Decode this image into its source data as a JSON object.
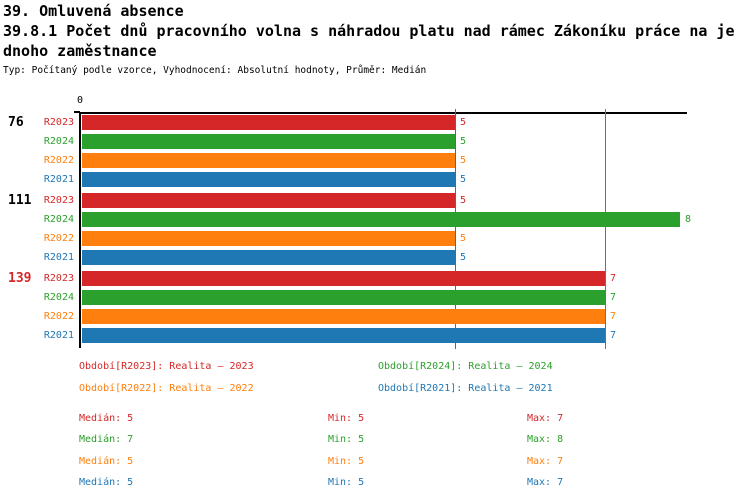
{
  "header": {
    "title_line1": "39. Omluvená absence",
    "title_line2": "39.8.1 Počet dnů pracovního volna s náhradou platu nad rámec Zákoníku práce na je",
    "title_line3": "dnoho zaměstnance",
    "meta": "Typ: Počítaný podle vzorce, Vyhodnocení: Absolutní hodnoty, Průměr: Medián"
  },
  "colors": {
    "R2023": "#d62728",
    "R2024": "#2ca02c",
    "R2022": "#ff7f0e",
    "R2021": "#1f77b4",
    "axis": "#000000",
    "text": "#000000"
  },
  "chart_data": {
    "type": "bar",
    "orientation": "horizontal",
    "title": "39.8.1 Počet dnů pracovního volna s náhradou platu nad rámec Zákoníku práce na jednoho zaměstnance",
    "x_axis": {
      "tick_labels": [
        "0"
      ],
      "min": 0,
      "implied_max": 8
    },
    "series_order": [
      "R2023",
      "R2024",
      "R2022",
      "R2021"
    ],
    "groups": [
      {
        "label": "76",
        "label_color": "#000000",
        "values": {
          "R2023": 5,
          "R2024": 5,
          "R2022": 5,
          "R2021": 5
        }
      },
      {
        "label": "111",
        "label_color": "#000000",
        "values": {
          "R2023": 5,
          "R2024": 8,
          "R2022": 5,
          "R2021": 5
        }
      },
      {
        "label": "139",
        "label_color": "#d62728",
        "values": {
          "R2023": 7,
          "R2024": 7,
          "R2022": 7,
          "R2021": 7
        }
      }
    ],
    "median_reference_lines": [
      {
        "series": "R2021",
        "value": 5,
        "color": "#1f77b4"
      },
      {
        "series": "R2024",
        "value": 7,
        "color": "#2ca02c"
      }
    ],
    "legend_position": "bottom",
    "grid": false
  },
  "legend": {
    "items": [
      {
        "series": "R2023",
        "label": "Období[R2023]: Realita – 2023",
        "color": "#d62728"
      },
      {
        "series": "R2024",
        "label": "Období[R2024]: Realita – 2024",
        "color": "#2ca02c"
      },
      {
        "series": "R2022",
        "label": "Období[R2022]: Realita – 2022",
        "color": "#ff7f0e"
      },
      {
        "series": "R2021",
        "label": "Období[R2021]: Realita – 2021",
        "color": "#1f77b4"
      }
    ]
  },
  "stats": {
    "rows": [
      {
        "series": "R2023",
        "color": "#d62728",
        "median": 5,
        "min": 5,
        "max": 7,
        "cells": [
          "Medián: 5",
          "Min: 5",
          "Max: 7"
        ]
      },
      {
        "series": "R2024",
        "color": "#2ca02c",
        "median": 7,
        "min": 5,
        "max": 8,
        "cells": [
          "Medián: 7",
          "Min: 5",
          "Max: 8"
        ]
      },
      {
        "series": "R2022",
        "color": "#ff7f0e",
        "median": 5,
        "min": 5,
        "max": 7,
        "cells": [
          "Medián: 5",
          "Min: 5",
          "Max: 7"
        ]
      },
      {
        "series": "R2021",
        "color": "#1f77b4",
        "median": 5,
        "min": 5,
        "max": 7,
        "cells": [
          "Medián: 5",
          "Min: 5",
          "Max: 7"
        ]
      }
    ]
  }
}
